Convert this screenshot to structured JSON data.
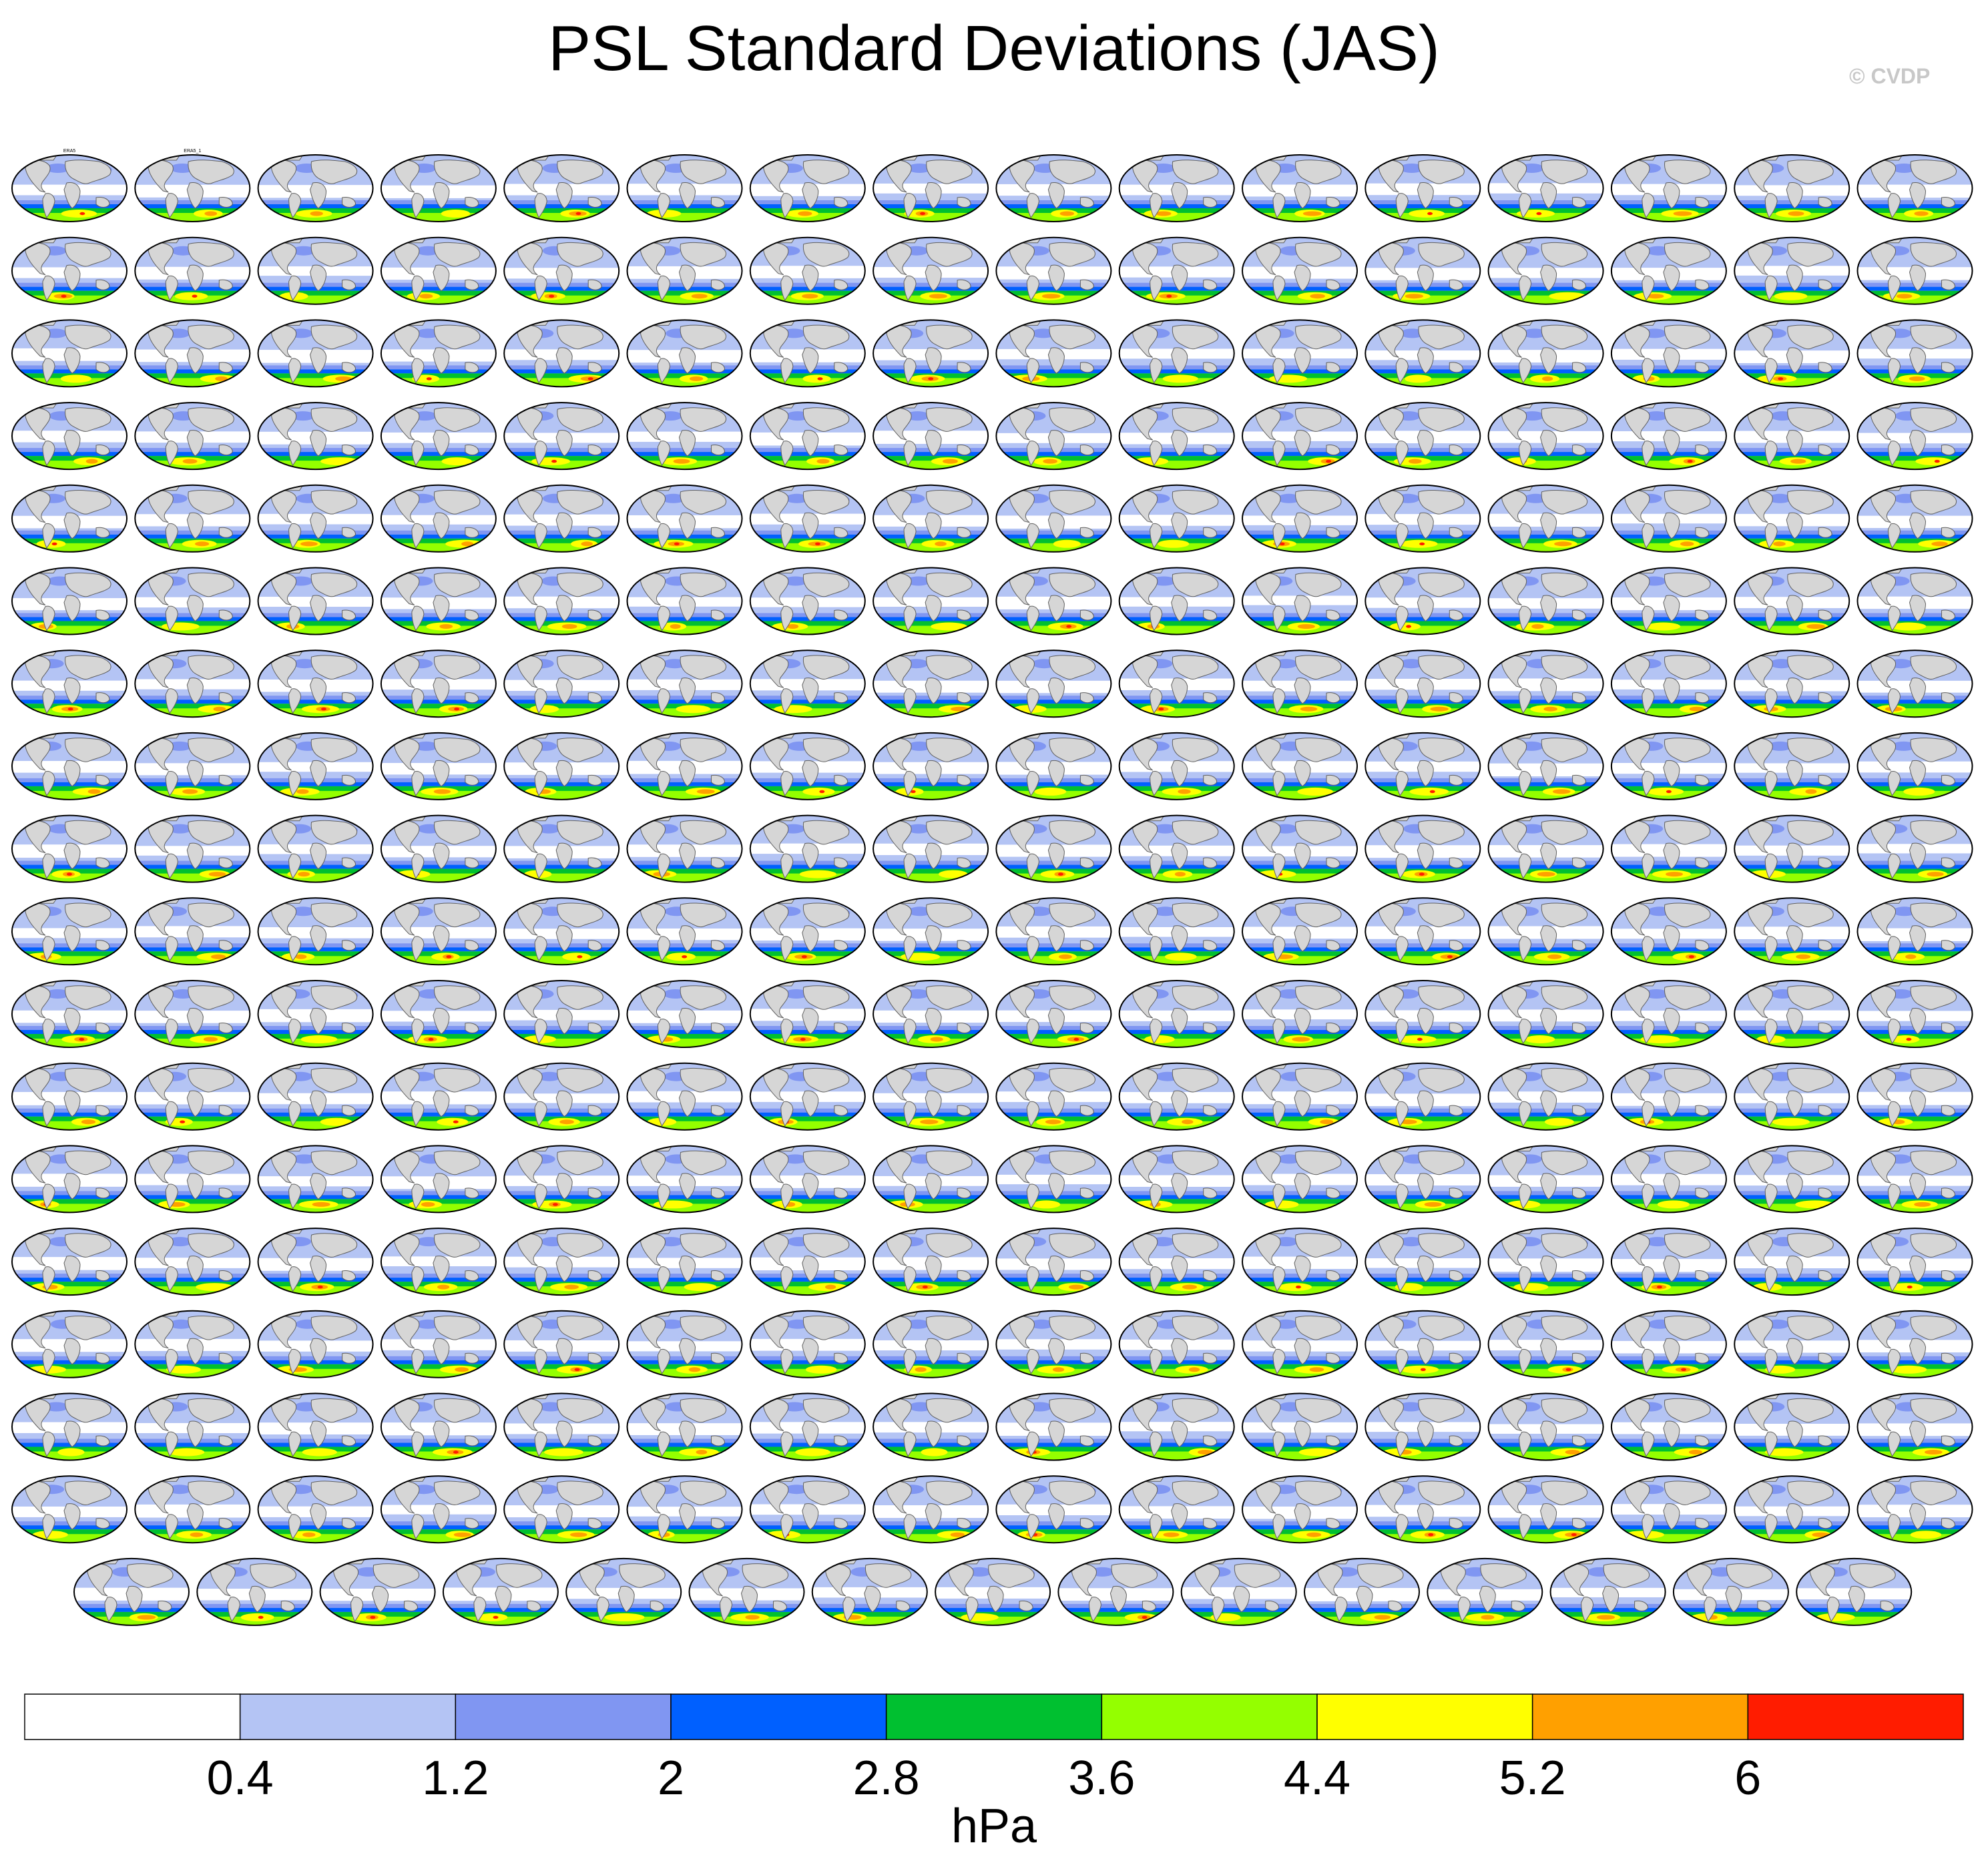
{
  "title": "PSL Standard Deviations (JAS)",
  "credit": "© CVDP",
  "chart_data": {
    "type": "heatmap",
    "title": "PSL Standard Deviations (JAS)",
    "description": "Grid of global Robinson-projection maps of sea level pressure standard deviation, one panel per dataset/ensemble member",
    "grid": {
      "rows_full": 17,
      "cols_full": 16,
      "last_row_panels": 15,
      "total_panels": 287
    },
    "first_panel_labels": [
      "ERA5",
      "ERA5_1"
    ],
    "colorbar": {
      "units": "hPa",
      "levels": [
        0.4,
        1.2,
        2,
        2.8,
        3.6,
        4.4,
        5.2,
        6
      ],
      "tick_labels": [
        "0.4",
        "1.2",
        "2",
        "2.8",
        "3.6",
        "4.4",
        "5.2",
        "6"
      ],
      "colors": [
        "#ffffff",
        "#b4c4f4",
        "#8096f2",
        "#0060ff",
        "#00c030",
        "#94ff00",
        "#ffff00",
        "#ffa000",
        "#ff1c00"
      ]
    }
  }
}
